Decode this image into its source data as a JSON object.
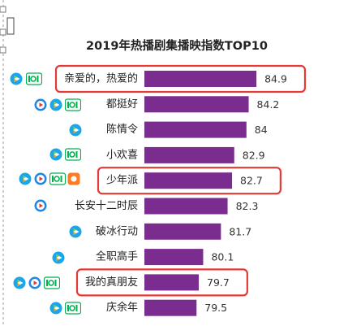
{
  "chart_data": {
    "type": "bar",
    "orientation": "horizontal",
    "title": "2019年热播剧集播映指数TOP10",
    "categories": [
      "亲爱的，热爱的",
      "都挺好",
      "陈情令",
      "小欢喜",
      "少年派",
      "长安十二时辰",
      "破冰行动",
      "全职高手",
      "我的真朋友",
      "庆余年"
    ],
    "values": [
      84.9,
      84.2,
      84,
      82.9,
      82.7,
      82.3,
      81.7,
      80.1,
      79.7,
      79.5
    ],
    "color": "#7b2c8f",
    "xlim": [
      74.8,
      86.5
    ],
    "highlight": [
      true,
      false,
      false,
      false,
      true,
      false,
      false,
      false,
      true,
      false
    ],
    "highlight_color": "#e53935"
  }
}
